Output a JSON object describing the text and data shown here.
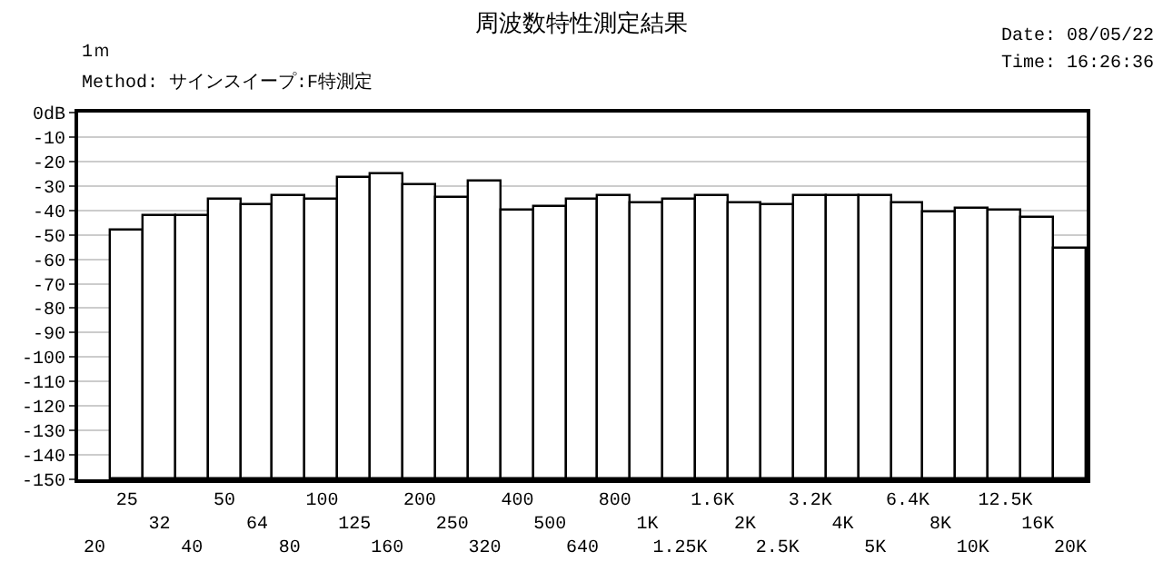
{
  "chart_data": {
    "type": "bar",
    "title": "周波数特性測定結果",
    "annotations": [
      "1ｍ",
      "Method: サインスイープ:F特測定",
      "Date: 08/05/22",
      "Time: 16:26:36"
    ],
    "categories": [
      "20",
      "25",
      "32",
      "40",
      "50",
      "64",
      "80",
      "100",
      "125",
      "160",
      "200",
      "250",
      "320",
      "400",
      "500",
      "640",
      "800",
      "1K",
      "1.25K",
      "1.6K",
      "2K",
      "2.5K",
      "3.2K",
      "4K",
      "5K",
      "6.4K",
      "8K",
      "10K",
      "12.5K",
      "16K",
      "20K"
    ],
    "base": [
      null,
      -150,
      -150,
      -150,
      -150,
      -150,
      -150,
      -150,
      -150,
      -150,
      -150,
      -150,
      -150,
      -150,
      -150,
      -150,
      -150,
      -150,
      -150,
      -150,
      -150,
      -150,
      -150,
      -150,
      -150,
      -150,
      -150,
      -150,
      -150,
      -150,
      -150
    ],
    "values": [
      null,
      102,
      107.5,
      108,
      114,
      112,
      115.5,
      114,
      123,
      124.5,
      120,
      115,
      121.5,
      110,
      111.5,
      114,
      116,
      113,
      114,
      115.5,
      113,
      112,
      115.5,
      115.5,
      115.5,
      113,
      109.5,
      111,
      110,
      107,
      94
    ],
    "color": "#ffffff",
    "ylim": [
      -150,
      0
    ],
    "yticks": [
      {
        "value": 0,
        "label": "0dB"
      },
      -10,
      -20,
      -30,
      -40,
      -50,
      -60,
      -70,
      -80,
      -90,
      -100,
      -110,
      -120,
      -130,
      -140,
      -150
    ],
    "grid": "y",
    "legend": false
  }
}
